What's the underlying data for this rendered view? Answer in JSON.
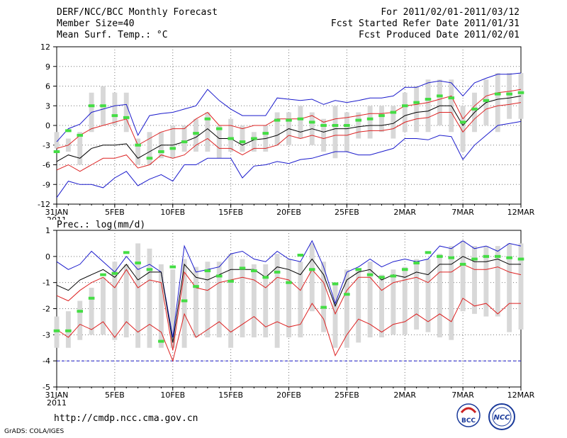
{
  "header": {
    "left": [
      "DERF/NCC/BCC Monthly Forecast",
      "Member Size=40",
      "Mean Surf. Temp.: °C"
    ],
    "right": [
      "For 2011/02/01-2011/03/12",
      "Fcst Started Refer Date 2011/01/31",
      "Fcst Produced Date 2011/02/01"
    ]
  },
  "footer": {
    "url": "http://cmdp.ncc.cma.gov.cn",
    "grads": "GrADS: COLA/IGES"
  },
  "logos": {
    "bcc": "BCC",
    "ncc": "NCC"
  },
  "colors": {
    "mean": "#000000",
    "spread": "#dd2222",
    "extreme": "#1a1acc",
    "box": "#d8d8d8",
    "obs": "#44dd44"
  },
  "chart_data": [
    {
      "type": "line",
      "title": "Mean Surf. Temp.: °C",
      "ylim": [
        -12,
        12
      ],
      "yticks": [
        12,
        9,
        6,
        3,
        0,
        -3,
        -6,
        -9,
        -12
      ],
      "x": [
        "1/31",
        "2/1",
        "2/2",
        "2/3",
        "2/4",
        "2/5",
        "2/6",
        "2/7",
        "2/8",
        "2/9",
        "2/10",
        "2/11",
        "2/12",
        "2/13",
        "2/14",
        "2/15",
        "2/16",
        "2/17",
        "2/18",
        "2/19",
        "2/20",
        "2/21",
        "2/22",
        "2/23",
        "2/24",
        "2/25",
        "2/26",
        "2/27",
        "2/28",
        "3/1",
        "3/2",
        "3/3",
        "3/4",
        "3/5",
        "3/6",
        "3/7",
        "3/8",
        "3/9",
        "3/10",
        "3/11",
        "3/12"
      ],
      "xtick_labels": [
        "31JAN\n2011",
        "5FEB",
        "10FEB",
        "15FEB",
        "20FEB",
        "25FEB",
        "2MAR",
        "7MAR",
        "12MAR"
      ],
      "box_days": [
        1,
        40
      ],
      "series": [
        {
          "name": "max",
          "values": [
            -11,
            -8.5,
            -9,
            -9,
            -9.5,
            -8,
            -7,
            -9.2,
            -8.2,
            -7.5,
            -8.5,
            -6,
            -6,
            -5,
            -5,
            -5,
            -8,
            -6.2,
            -6,
            -5.5,
            -5.8,
            -5.2,
            -5,
            -4.5,
            -4,
            -4,
            -4.5,
            -4.5,
            -4,
            -3.5,
            -2,
            -2,
            -2.2,
            -1.5,
            -1.7,
            -5.2,
            -3,
            -1.5,
            0,
            0.3,
            0.6
          ]
        },
        {
          "name": "upper_extreme",
          "values": [
            -2.5,
            -0.5,
            0.2,
            2,
            2.5,
            3,
            3.2,
            -1.5,
            1.5,
            1.8,
            2,
            2.5,
            3,
            5.5,
            3.8,
            2.5,
            1.5,
            1.5,
            1.5,
            4.2,
            4,
            3.8,
            4,
            3.2,
            3.8,
            3.5,
            3.8,
            4.2,
            4.2,
            4.5,
            5.8,
            5.8,
            6.5,
            6.8,
            6.5,
            4.5,
            6.5,
            7.2,
            7.8,
            7.8,
            8
          ]
        }
      ],
      "bands": {
        "upper": [
          -3.5,
          -3,
          -1.5,
          -0.5,
          0,
          0.5,
          1,
          -3,
          -2,
          -1,
          -0.5,
          -0.5,
          1,
          2,
          0,
          0,
          -0.5,
          0,
          0,
          1,
          1,
          1,
          1.5,
          0.5,
          1,
          1.2,
          1.5,
          1.8,
          1.8,
          2,
          3,
          3.2,
          3.5,
          4,
          4.5,
          1,
          3,
          4.5,
          5,
          5.2,
          5.5
        ],
        "mean": [
          -5.5,
          -4.5,
          -5,
          -3.5,
          -3,
          -3,
          -2.8,
          -5,
          -4,
          -3,
          -3,
          -2.5,
          -1.8,
          -0.5,
          -2,
          -2,
          -3,
          -2.2,
          -2,
          -1.5,
          -0.5,
          -1,
          -0.5,
          -1,
          -0.5,
          -0.5,
          -0.2,
          0,
          0,
          0.3,
          1.5,
          2,
          2.2,
          3,
          3,
          0,
          2,
          3.5,
          4,
          4.2,
          4.5
        ],
        "lower": [
          -6.8,
          -6,
          -7,
          -6,
          -5,
          -5,
          -4.5,
          -6.5,
          -6,
          -4.5,
          -5,
          -4.5,
          -3,
          -2,
          -3.5,
          -3.5,
          -4.5,
          -3.5,
          -3.5,
          -3,
          -1.5,
          -2,
          -1.5,
          -2,
          -1.5,
          -1.5,
          -1,
          -0.8,
          -0.8,
          -0.5,
          0.5,
          1,
          1.2,
          2,
          2,
          -1,
          1,
          2.5,
          3,
          3.2,
          3.5
        ]
      },
      "boxes": [
        [
          -1,
          -3.5
        ],
        [
          -2,
          -4
        ],
        [
          -1,
          -6
        ],
        [
          5,
          -1
        ],
        [
          6,
          0
        ],
        [
          5,
          0
        ],
        [
          5,
          -1
        ],
        [
          -2,
          -6
        ],
        [
          -1,
          -6
        ],
        [
          -1,
          -5
        ],
        [
          0,
          -5
        ],
        [
          0,
          -4
        ],
        [
          1,
          -4
        ],
        [
          2,
          -4
        ],
        [
          0,
          -5
        ],
        [
          1,
          -4
        ],
        [
          0,
          -4
        ],
        [
          -1,
          -4
        ],
        [
          0,
          -4
        ],
        [
          2,
          -3
        ],
        [
          2,
          -3
        ],
        [
          3,
          -2
        ],
        [
          2,
          -3
        ],
        [
          1,
          -4
        ],
        [
          3,
          -5
        ],
        [
          2,
          -4
        ],
        [
          2,
          -2
        ],
        [
          3,
          -2
        ],
        [
          3,
          -1
        ],
        [
          3,
          -2
        ],
        [
          5,
          -1
        ],
        [
          6,
          -1
        ],
        [
          7,
          -1
        ],
        [
          7,
          0
        ],
        [
          7,
          -1
        ],
        [
          3,
          -4
        ],
        [
          5,
          -1
        ],
        [
          7,
          0
        ],
        [
          8,
          -1
        ],
        [
          8,
          1
        ],
        [
          8,
          1
        ]
      ],
      "observed": [
        -4,
        -0.8,
        -1.5,
        3,
        3,
        1.5,
        1.2,
        -3,
        -5,
        -4,
        -3.5,
        -2.5,
        -1.2,
        1,
        -0.5,
        -2,
        -2.5,
        -2,
        -1.2,
        0.8,
        0.8,
        1,
        0.5,
        0,
        0,
        0,
        0.8,
        1,
        1.5,
        2,
        3,
        3.5,
        4,
        4.5,
        4.2,
        0.5,
        2.5,
        3.8,
        4.8,
        4.8,
        5
      ]
    },
    {
      "type": "line",
      "title": "Prec.: log(mm/d)",
      "ylim": [
        -5,
        1
      ],
      "yticks": [
        1,
        0,
        -1,
        -2,
        -3,
        -4,
        -5
      ],
      "x": [
        "1/31",
        "2/1",
        "2/2",
        "2/3",
        "2/4",
        "2/5",
        "2/6",
        "2/7",
        "2/8",
        "2/9",
        "2/10",
        "2/11",
        "2/12",
        "2/13",
        "2/14",
        "2/15",
        "2/16",
        "2/17",
        "2/18",
        "2/19",
        "2/20",
        "2/21",
        "2/22",
        "2/23",
        "2/24",
        "2/25",
        "2/26",
        "2/27",
        "2/28",
        "3/1",
        "3/2",
        "3/3",
        "3/4",
        "3/5",
        "3/6",
        "3/7",
        "3/8",
        "3/9",
        "3/10",
        "3/11",
        "3/12"
      ],
      "xtick_labels": [
        "31JAN\n2011",
        "5FEB",
        "10FEB",
        "15FEB",
        "20FEB",
        "25FEB",
        "2MAR",
        "7MAR",
        "12MAR"
      ],
      "series": [
        {
          "name": "upper_extreme",
          "values": [
            -0.2,
            -0.5,
            -0.3,
            0.2,
            -0.2,
            -0.6,
            0,
            -0.5,
            -0.3,
            -0.6,
            -3.1,
            0.4,
            -0.6,
            -0.5,
            -0.4,
            0.1,
            0.2,
            -0.1,
            -0.2,
            0.2,
            -0.1,
            -0.2,
            0.6,
            -0.4,
            -1.8,
            -0.6,
            -0.4,
            -0.1,
            -0.4,
            -0.2,
            -0.1,
            -0.2,
            -0.1,
            0.4,
            0.3,
            0.6,
            0.3,
            0.4,
            0.2,
            0.5,
            0.4
          ]
        },
        {
          "name": "min",
          "values": [
            -4,
            -4,
            -4,
            -4,
            -4,
            -4,
            -4,
            -4,
            -4,
            -4,
            -4,
            -4,
            -4,
            -4,
            -4,
            -4,
            -4,
            -4,
            -4,
            -4,
            -4,
            -4,
            -4,
            -4,
            -4,
            -4,
            -4,
            -4,
            -4,
            -4,
            -4,
            -4,
            -4,
            -4,
            -4,
            -4,
            -4,
            -4,
            -4,
            -4,
            -4
          ]
        }
      ],
      "bands": {
        "upper": [
          -1.5,
          -1.7,
          -1.3,
          -1.0,
          -0.8,
          -1.2,
          -0.5,
          -1.2,
          -0.9,
          -1.0,
          -3.6,
          -0.6,
          -1.2,
          -1.3,
          -1.0,
          -0.9,
          -0.8,
          -0.9,
          -1.2,
          -0.8,
          -0.9,
          -1.3,
          -0.5,
          -1.0,
          -2.2,
          -1.3,
          -0.8,
          -0.8,
          -1.3,
          -1.0,
          -0.9,
          -0.8,
          -1.0,
          -0.6,
          -0.6,
          -0.3,
          -0.5,
          -0.5,
          -0.4,
          -0.6,
          -0.7
        ],
        "mean": [
          -1.1,
          -1.3,
          -0.9,
          -0.7,
          -0.5,
          -0.8,
          -0.3,
          -0.9,
          -0.6,
          -0.6,
          -3.3,
          -0.3,
          -0.8,
          -0.9,
          -0.7,
          -0.5,
          -0.5,
          -0.5,
          -0.8,
          -0.4,
          -0.5,
          -0.7,
          -0.1,
          -0.7,
          -1.9,
          -0.9,
          -0.6,
          -0.5,
          -0.9,
          -0.7,
          -0.8,
          -0.6,
          -0.7,
          -0.3,
          -0.3,
          0,
          -0.2,
          -0.2,
          -0.1,
          -0.3,
          -0.3
        ],
        "lower": [
          -2.8,
          -3.1,
          -2.6,
          -2.8,
          -2.5,
          -3.1,
          -2.5,
          -2.9,
          -2.6,
          -2.9,
          -4,
          -2.2,
          -3.1,
          -2.8,
          -2.5,
          -2.9,
          -2.6,
          -2.3,
          -2.7,
          -2.5,
          -2.7,
          -2.6,
          -1.8,
          -2.4,
          -3.8,
          -3.0,
          -2.4,
          -2.6,
          -2.9,
          -2.6,
          -2.5,
          -2.2,
          -2.5,
          -2.2,
          -2.5,
          -1.6,
          -1.9,
          -1.8,
          -2.2,
          -1.8,
          -1.8
        ]
      },
      "boxes": [
        [
          -2.3,
          -3.5
        ],
        [
          -2.1,
          -3.5
        ],
        [
          -1.7,
          -3.2
        ],
        [
          -1.2,
          -3
        ],
        [
          -0.8,
          -3
        ],
        [
          -0.2,
          -3.2
        ],
        [
          -0.3,
          -3.1
        ],
        [
          0.5,
          -3.5
        ],
        [
          0.3,
          -3.5
        ],
        [
          -0.3,
          -3.5
        ],
        [
          -0.5,
          -3.5
        ],
        [
          -0.1,
          -3.5
        ],
        [
          -0.4,
          -3.1
        ],
        [
          -0.2,
          -3.1
        ],
        [
          -0.2,
          -3.1
        ],
        [
          0.1,
          -3.5
        ],
        [
          -0.1,
          -3.1
        ],
        [
          -0.3,
          -3.1
        ],
        [
          -0.3,
          -3.1
        ],
        [
          0.1,
          -3.5
        ],
        [
          -0.1,
          -3.1
        ],
        [
          -0.2,
          -3.1
        ],
        [
          0.5,
          -2.1
        ],
        [
          -0.2,
          -2.9
        ],
        [
          -1,
          -3.5
        ],
        [
          -0.5,
          -3.5
        ],
        [
          -0.5,
          -3.3
        ],
        [
          -0.2,
          -3.1
        ],
        [
          -0.7,
          -3.1
        ],
        [
          -0.5,
          -3
        ],
        [
          -0.4,
          -3
        ],
        [
          -0.1,
          -2.8
        ],
        [
          -0.1,
          -2.9
        ],
        [
          0.1,
          -3.1
        ],
        [
          0.4,
          -3.2
        ],
        [
          0.6,
          -2.1
        ],
        [
          0.4,
          -2.2
        ],
        [
          0.4,
          -2.3
        ],
        [
          0.4,
          -2.3
        ],
        [
          0.5,
          -2.9
        ],
        [
          0.5,
          -2.8
        ]
      ],
      "observed": [
        -2.85,
        -2.85,
        -2.1,
        -1.6,
        -0.7,
        -0.65,
        0.15,
        -0.25,
        -0.5,
        -3.25,
        -0.4,
        -1.7,
        -1.15,
        -0.55,
        -0.75,
        -0.95,
        -0.45,
        -0.55,
        -0.8,
        -0.6,
        -1.0,
        0.05,
        -0.5,
        -1.95,
        -1.05,
        -1.45,
        -0.5,
        -0.7,
        -0.8,
        -0.75,
        -0.5,
        -0.25,
        0.15,
        0,
        -0.05,
        -0.3,
        -0.1,
        0,
        0,
        -0.05,
        -0.1
      ]
    }
  ]
}
